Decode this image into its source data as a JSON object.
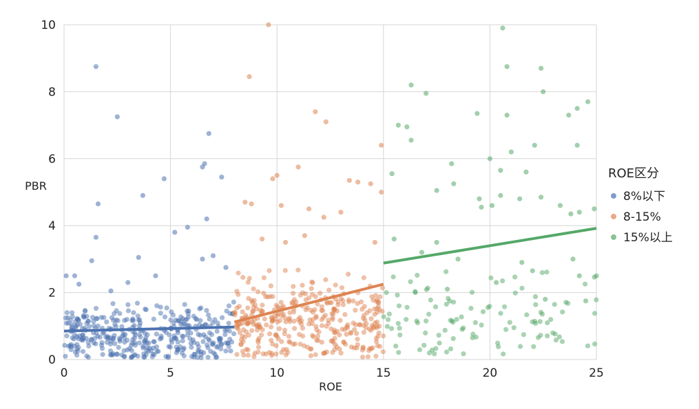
{
  "chart_data": {
    "type": "scatter",
    "xlabel": "ROE",
    "ylabel": "PBR",
    "xlim": [
      0,
      25
    ],
    "ylim": [
      0,
      10
    ],
    "xticks": [
      "0",
      "5",
      "10",
      "15",
      "20",
      "25"
    ],
    "yticks": [
      "0",
      "2",
      "4",
      "6",
      "8",
      "10"
    ],
    "grid": true,
    "legend": {
      "title": "ROE区分",
      "placement": "right"
    },
    "series": [
      {
        "name": "8%以下",
        "color": "#4c72b0",
        "x_range": [
          0,
          8
        ],
        "points": [
          [
            1.5,
            8.75
          ],
          [
            2.5,
            7.25
          ],
          [
            1.6,
            4.65
          ],
          [
            1.5,
            3.65
          ],
          [
            3.7,
            4.9
          ],
          [
            4.7,
            5.4
          ],
          [
            6.5,
            5.75
          ],
          [
            6.6,
            5.85
          ],
          [
            6.8,
            6.75
          ],
          [
            6.7,
            4.2
          ],
          [
            5.8,
            3.95
          ],
          [
            7.4,
            5.45
          ],
          [
            5.2,
            3.8
          ],
          [
            1.3,
            2.95
          ],
          [
            3.5,
            3.05
          ],
          [
            0.1,
            2.5
          ],
          [
            0.7,
            2.25
          ],
          [
            2.2,
            2.05
          ],
          [
            6.5,
            3.0
          ],
          [
            7.0,
            3.1
          ],
          [
            7.6,
            2.75
          ],
          [
            4.3,
            2.5
          ],
          [
            0.5,
            2.5
          ],
          [
            3.0,
            2.3
          ]
        ],
        "trend": [
          [
            0,
            0.85
          ],
          [
            8,
            0.97
          ]
        ],
        "cluster": {
          "count": 380,
          "x": [
            0,
            8
          ],
          "y_center": 0.7,
          "y_spread": 0.45
        }
      },
      {
        "name": "8-15%",
        "color": "#dd8452",
        "x_range": [
          8,
          15
        ],
        "points": [
          [
            9.6,
            10.0
          ],
          [
            8.7,
            8.45
          ],
          [
            11.8,
            7.4
          ],
          [
            12.3,
            7.1
          ],
          [
            14.9,
            6.4
          ],
          [
            11.0,
            5.75
          ],
          [
            10.0,
            5.5
          ],
          [
            9.8,
            5.4
          ],
          [
            13.4,
            5.35
          ],
          [
            13.8,
            5.3
          ],
          [
            14.4,
            5.25
          ],
          [
            14.9,
            5.0
          ],
          [
            8.5,
            4.7
          ],
          [
            8.8,
            4.65
          ],
          [
            10.2,
            4.6
          ],
          [
            11.5,
            4.5
          ],
          [
            13.0,
            4.4
          ],
          [
            12.2,
            4.25
          ],
          [
            9.3,
            3.6
          ],
          [
            11.3,
            3.7
          ],
          [
            10.4,
            3.5
          ],
          [
            14.6,
            3.5
          ]
        ],
        "trend": [
          [
            8,
            1.12
          ],
          [
            15,
            2.25
          ]
        ],
        "cluster": {
          "count": 360,
          "x": [
            8,
            15
          ],
          "y_center": 1.05,
          "y_spread": 0.65
        }
      },
      {
        "name": "15%以上",
        "color": "#55a868",
        "x_range": [
          15,
          25
        ],
        "points": [
          [
            20.6,
            9.9
          ],
          [
            20.8,
            8.75
          ],
          [
            22.4,
            8.7
          ],
          [
            16.3,
            8.2
          ],
          [
            17.0,
            7.95
          ],
          [
            22.5,
            8.0
          ],
          [
            19.4,
            7.35
          ],
          [
            20.8,
            7.3
          ],
          [
            24.1,
            7.5
          ],
          [
            24.6,
            7.7
          ],
          [
            23.7,
            7.3
          ],
          [
            15.7,
            7.0
          ],
          [
            16.1,
            6.95
          ],
          [
            16.3,
            6.55
          ],
          [
            21.0,
            6.2
          ],
          [
            22.1,
            6.4
          ],
          [
            24.1,
            6.4
          ],
          [
            20.0,
            6.0
          ],
          [
            18.2,
            5.85
          ],
          [
            20.5,
            5.65
          ],
          [
            21.7,
            5.6
          ],
          [
            15.4,
            5.55
          ],
          [
            18.3,
            5.25
          ],
          [
            17.5,
            5.05
          ],
          [
            20.5,
            4.9
          ],
          [
            22.4,
            4.85
          ],
          [
            21.4,
            4.8
          ],
          [
            19.5,
            4.8
          ],
          [
            23.3,
            4.6
          ],
          [
            19.6,
            4.55
          ],
          [
            20.1,
            4.6
          ],
          [
            23.8,
            4.35
          ],
          [
            24.2,
            4.4
          ],
          [
            24.9,
            4.5
          ],
          [
            15.5,
            3.6
          ],
          [
            17.5,
            3.5
          ],
          [
            16.8,
            3.2
          ],
          [
            18.5,
            3.0
          ],
          [
            21.5,
            2.9
          ],
          [
            23.9,
            3.0
          ],
          [
            22.0,
            2.65
          ],
          [
            24.2,
            2.5
          ],
          [
            25.0,
            2.5
          ],
          [
            20.3,
            2.3
          ],
          [
            16.5,
            2.0
          ],
          [
            18.0,
            2.1
          ],
          [
            22.6,
            1.8
          ],
          [
            24.5,
            1.75
          ]
        ],
        "trend": [
          [
            15,
            2.88
          ],
          [
            25,
            3.92
          ]
        ],
        "cluster": {
          "count": 110,
          "x": [
            15,
            25
          ],
          "y_center": 1.25,
          "y_spread": 0.6
        }
      }
    ]
  }
}
